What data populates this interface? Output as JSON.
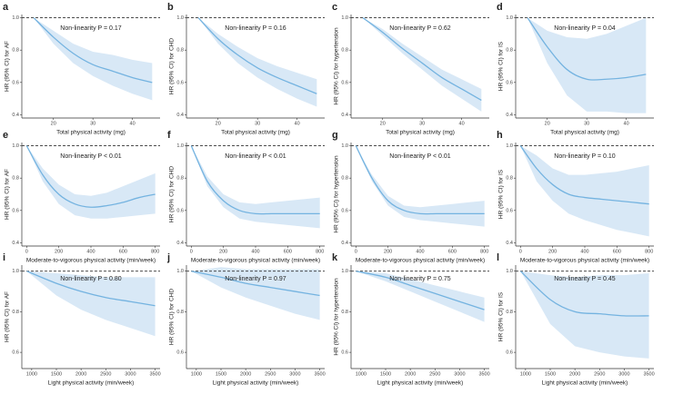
{
  "chart_data": [
    {
      "type": "line",
      "panel": "a",
      "annotation": "Non-linearity P = 0.17",
      "xlabel": "Total physical activity (mg)",
      "ylabel": "HR (95% CI) for AF",
      "x": [
        15,
        20,
        25,
        30,
        35,
        40,
        45
      ],
      "values": [
        1.0,
        0.88,
        0.78,
        0.71,
        0.67,
        0.63,
        0.6
      ],
      "lower": [
        1.0,
        0.84,
        0.72,
        0.64,
        0.58,
        0.53,
        0.49
      ],
      "upper": [
        1.0,
        0.92,
        0.84,
        0.79,
        0.77,
        0.74,
        0.72
      ],
      "color": "#74b3e0",
      "band_color": "#d8e8f6",
      "reference": 1,
      "xlim": [
        12,
        47
      ],
      "xticks": [
        20,
        30,
        40
      ],
      "ylim": [
        0.38,
        1.02
      ],
      "yticks": [
        0.4,
        0.6,
        0.8,
        {
          "value": 1,
          "label": "1.0"
        }
      ]
    },
    {
      "type": "line",
      "panel": "b",
      "annotation": "Non-linearity P = 0.16",
      "xlabel": "Total physical activity (mg)",
      "ylabel": "HR (95% CI) for CHD",
      "x": [
        15,
        20,
        25,
        30,
        35,
        40,
        45
      ],
      "values": [
        1.0,
        0.87,
        0.77,
        0.69,
        0.63,
        0.58,
        0.53
      ],
      "lower": [
        1.0,
        0.84,
        0.72,
        0.63,
        0.56,
        0.5,
        0.45
      ],
      "upper": [
        1.0,
        0.9,
        0.82,
        0.75,
        0.7,
        0.66,
        0.62
      ],
      "color": "#74b3e0",
      "band_color": "#d8e8f6",
      "reference": 1,
      "xlim": [
        12,
        47
      ],
      "xticks": [
        20,
        30,
        40
      ],
      "ylim": [
        0.38,
        1.02
      ],
      "yticks": [
        0.4,
        0.6,
        0.8,
        {
          "value": 1,
          "label": "1.0"
        }
      ]
    },
    {
      "type": "line",
      "panel": "c",
      "annotation": "Non-linearity P = 0.62",
      "xlabel": "Total physical activity (mg)",
      "ylabel": "HR (95% CI) for hypertension",
      "x": [
        15,
        20,
        25,
        30,
        35,
        40,
        45
      ],
      "values": [
        1.0,
        0.91,
        0.81,
        0.72,
        0.63,
        0.56,
        0.49
      ],
      "lower": [
        1.0,
        0.89,
        0.78,
        0.68,
        0.58,
        0.5,
        0.42
      ],
      "upper": [
        1.0,
        0.93,
        0.84,
        0.76,
        0.68,
        0.62,
        0.56
      ],
      "color": "#74b3e0",
      "band_color": "#d8e8f6",
      "reference": 1,
      "xlim": [
        12,
        47
      ],
      "xticks": [
        20,
        30,
        40
      ],
      "ylim": [
        0.38,
        1.02
      ],
      "yticks": [
        0.4,
        0.6,
        0.8,
        {
          "value": 1,
          "label": "1.0"
        }
      ]
    },
    {
      "type": "line",
      "panel": "d",
      "annotation": "Non-linearity P = 0.04",
      "xlabel": "Total physical activity (mg)",
      "ylabel": "HR (95% CI) for IS",
      "x": [
        15,
        20,
        25,
        30,
        35,
        40,
        45
      ],
      "values": [
        1.0,
        0.82,
        0.68,
        0.62,
        0.62,
        0.63,
        0.65
      ],
      "lower": [
        1.0,
        0.72,
        0.52,
        0.42,
        0.42,
        0.41,
        0.41
      ],
      "upper": [
        1.0,
        0.92,
        0.88,
        0.87,
        0.9,
        0.95,
        1.0
      ],
      "color": "#74b3e0",
      "band_color": "#d8e8f6",
      "reference": 1,
      "xlim": [
        12,
        47
      ],
      "xticks": [
        20,
        30,
        40
      ],
      "ylim": [
        0.38,
        1.02
      ],
      "yticks": [
        0.4,
        0.6,
        0.8,
        {
          "value": 1,
          "label": "1.0"
        }
      ]
    },
    {
      "type": "line",
      "panel": "e",
      "annotation": "Non-linearity P < 0.01",
      "xlabel": "Moderate-to-vigorous physical activity (min/week)",
      "ylabel": "HR (95% CI) for AF",
      "x": [
        0,
        100,
        200,
        300,
        400,
        500,
        600,
        700,
        800
      ],
      "values": [
        1.0,
        0.82,
        0.7,
        0.64,
        0.62,
        0.63,
        0.65,
        0.68,
        0.7
      ],
      "lower": [
        1.0,
        0.78,
        0.64,
        0.57,
        0.55,
        0.55,
        0.56,
        0.57,
        0.58
      ],
      "upper": [
        1.0,
        0.86,
        0.76,
        0.7,
        0.69,
        0.71,
        0.75,
        0.79,
        0.83
      ],
      "color": "#74b3e0",
      "band_color": "#d8e8f6",
      "reference": 1,
      "xlim": [
        -30,
        830
      ],
      "xticks": [
        0,
        200,
        400,
        600,
        800
      ],
      "ylim": [
        0.38,
        1.02
      ],
      "yticks": [
        0.4,
        0.6,
        0.8,
        {
          "value": 1,
          "label": "1.0"
        }
      ]
    },
    {
      "type": "line",
      "panel": "f",
      "annotation": "Non-linearity P < 0.01",
      "xlabel": "Moderate-to-vigorous physical activity (min/week)",
      "ylabel": "HR (95% CI) for CHD",
      "x": [
        0,
        100,
        200,
        300,
        400,
        500,
        600,
        700,
        800
      ],
      "values": [
        1.0,
        0.78,
        0.66,
        0.6,
        0.58,
        0.58,
        0.58,
        0.58,
        0.58
      ],
      "lower": [
        1.0,
        0.75,
        0.62,
        0.55,
        0.53,
        0.52,
        0.51,
        0.5,
        0.49
      ],
      "upper": [
        1.0,
        0.81,
        0.7,
        0.65,
        0.64,
        0.65,
        0.66,
        0.67,
        0.68
      ],
      "color": "#74b3e0",
      "band_color": "#d8e8f6",
      "reference": 1,
      "xlim": [
        -30,
        830
      ],
      "xticks": [
        0,
        200,
        400,
        600,
        800
      ],
      "ylim": [
        0.38,
        1.02
      ],
      "yticks": [
        0.4,
        0.6,
        0.8,
        {
          "value": 1,
          "label": "1.0"
        }
      ]
    },
    {
      "type": "line",
      "panel": "g",
      "annotation": "Non-linearity P < 0.01",
      "xlabel": "Moderate-to-vigorous physical activity (min/week)",
      "ylabel": "HR (95% CI) for hypertension",
      "x": [
        0,
        100,
        200,
        300,
        400,
        500,
        600,
        700,
        800
      ],
      "values": [
        1.0,
        0.8,
        0.66,
        0.6,
        0.58,
        0.58,
        0.58,
        0.58,
        0.58
      ],
      "lower": [
        1.0,
        0.78,
        0.63,
        0.56,
        0.54,
        0.53,
        0.52,
        0.51,
        0.5
      ],
      "upper": [
        1.0,
        0.82,
        0.69,
        0.63,
        0.62,
        0.63,
        0.64,
        0.65,
        0.66
      ],
      "color": "#74b3e0",
      "band_color": "#d8e8f6",
      "reference": 1,
      "xlim": [
        -30,
        830
      ],
      "xticks": [
        0,
        200,
        400,
        600,
        800
      ],
      "ylim": [
        0.38,
        1.02
      ],
      "yticks": [
        0.4,
        0.6,
        0.8,
        {
          "value": 1,
          "label": "1.0"
        }
      ]
    },
    {
      "type": "line",
      "panel": "h",
      "annotation": "Non-linearity P = 0.10",
      "xlabel": "Moderate-to-vigorous physical activity (min/week)",
      "ylabel": "HR (95% CI) for IS",
      "x": [
        0,
        100,
        200,
        300,
        400,
        500,
        600,
        700,
        800
      ],
      "values": [
        1.0,
        0.86,
        0.76,
        0.7,
        0.68,
        0.67,
        0.66,
        0.65,
        0.64
      ],
      "lower": [
        1.0,
        0.78,
        0.66,
        0.58,
        0.54,
        0.51,
        0.48,
        0.46,
        0.44
      ],
      "upper": [
        1.0,
        0.94,
        0.86,
        0.82,
        0.82,
        0.83,
        0.84,
        0.86,
        0.88
      ],
      "color": "#74b3e0",
      "band_color": "#d8e8f6",
      "reference": 1,
      "xlim": [
        -30,
        830
      ],
      "xticks": [
        0,
        200,
        400,
        600,
        800
      ],
      "ylim": [
        0.38,
        1.02
      ],
      "yticks": [
        0.4,
        0.6,
        0.8,
        {
          "value": 1,
          "label": "1.0"
        }
      ]
    },
    {
      "type": "line",
      "panel": "i",
      "annotation": "Non-linearity P = 0.80",
      "xlabel": "Light physical activity (min/week)",
      "ylabel": "HR (95% CI) for AF",
      "x": [
        900,
        1500,
        2000,
        2500,
        3000,
        3500
      ],
      "values": [
        1.0,
        0.94,
        0.9,
        0.87,
        0.85,
        0.83
      ],
      "lower": [
        1.0,
        0.88,
        0.81,
        0.76,
        0.72,
        0.68
      ],
      "upper": [
        1.0,
        0.99,
        0.98,
        0.97,
        0.97,
        0.97
      ],
      "color": "#74b3e0",
      "band_color": "#d8e8f6",
      "reference": 1,
      "xlim": [
        800,
        3600
      ],
      "xticks": [
        1000,
        1500,
        2000,
        2500,
        3000,
        3500
      ],
      "ylim": [
        0.52,
        1.03
      ],
      "yticks": [
        0.6,
        0.8,
        {
          "value": 1,
          "label": "1.0"
        }
      ]
    },
    {
      "type": "line",
      "panel": "j",
      "annotation": "Non-linearity P = 0.97",
      "xlabel": "Light physical activity (min/week)",
      "ylabel": "HR (95% CI) for CHD",
      "x": [
        900,
        1500,
        2000,
        2500,
        3000,
        3500
      ],
      "values": [
        1.0,
        0.97,
        0.94,
        0.92,
        0.9,
        0.88
      ],
      "lower": [
        1.0,
        0.92,
        0.87,
        0.83,
        0.79,
        0.76
      ],
      "upper": [
        1.0,
        1.02,
        1.01,
        1.01,
        1.01,
        1.01
      ],
      "color": "#74b3e0",
      "band_color": "#d8e8f6",
      "reference": 1,
      "xlim": [
        800,
        3600
      ],
      "xticks": [
        1000,
        1500,
        2000,
        2500,
        3000,
        3500
      ],
      "ylim": [
        0.52,
        1.03
      ],
      "yticks": [
        0.6,
        0.8,
        {
          "value": 1,
          "label": "1.0"
        }
      ]
    },
    {
      "type": "line",
      "panel": "k",
      "annotation": "Non-linearity P = 0.75",
      "xlabel": "Light physical activity (min/week)",
      "ylabel": "HR (95% CI) for hypertension",
      "x": [
        900,
        1500,
        2000,
        2500,
        3000,
        3500
      ],
      "values": [
        1.0,
        0.97,
        0.93,
        0.89,
        0.85,
        0.81
      ],
      "lower": [
        1.0,
        0.95,
        0.9,
        0.85,
        0.8,
        0.75
      ],
      "upper": [
        1.0,
        0.99,
        0.96,
        0.93,
        0.9,
        0.87
      ],
      "color": "#74b3e0",
      "band_color": "#d8e8f6",
      "reference": 1,
      "xlim": [
        800,
        3600
      ],
      "xticks": [
        1000,
        1500,
        2000,
        2500,
        3000,
        3500
      ],
      "ylim": [
        0.52,
        1.03
      ],
      "yticks": [
        0.6,
        0.8,
        {
          "value": 1,
          "label": "1.0"
        }
      ]
    },
    {
      "type": "line",
      "panel": "l",
      "annotation": "Non-linearity P = 0.45",
      "xlabel": "Light physical activity (min/week)",
      "ylabel": "HR (95% CI) for IS",
      "x": [
        900,
        1500,
        2000,
        2500,
        3000,
        3500
      ],
      "values": [
        1.0,
        0.86,
        0.8,
        0.79,
        0.78,
        0.78
      ],
      "lower": [
        1.0,
        0.74,
        0.63,
        0.6,
        0.58,
        0.57
      ],
      "upper": [
        1.0,
        0.98,
        0.97,
        0.98,
        0.98,
        0.99
      ],
      "color": "#74b3e0",
      "band_color": "#d8e8f6",
      "reference": 1,
      "xlim": [
        800,
        3600
      ],
      "xticks": [
        1000,
        1500,
        2000,
        2500,
        3000,
        3500
      ],
      "ylim": [
        0.52,
        1.03
      ],
      "yticks": [
        0.6,
        0.8,
        {
          "value": 1,
          "label": "1.0"
        }
      ]
    }
  ]
}
